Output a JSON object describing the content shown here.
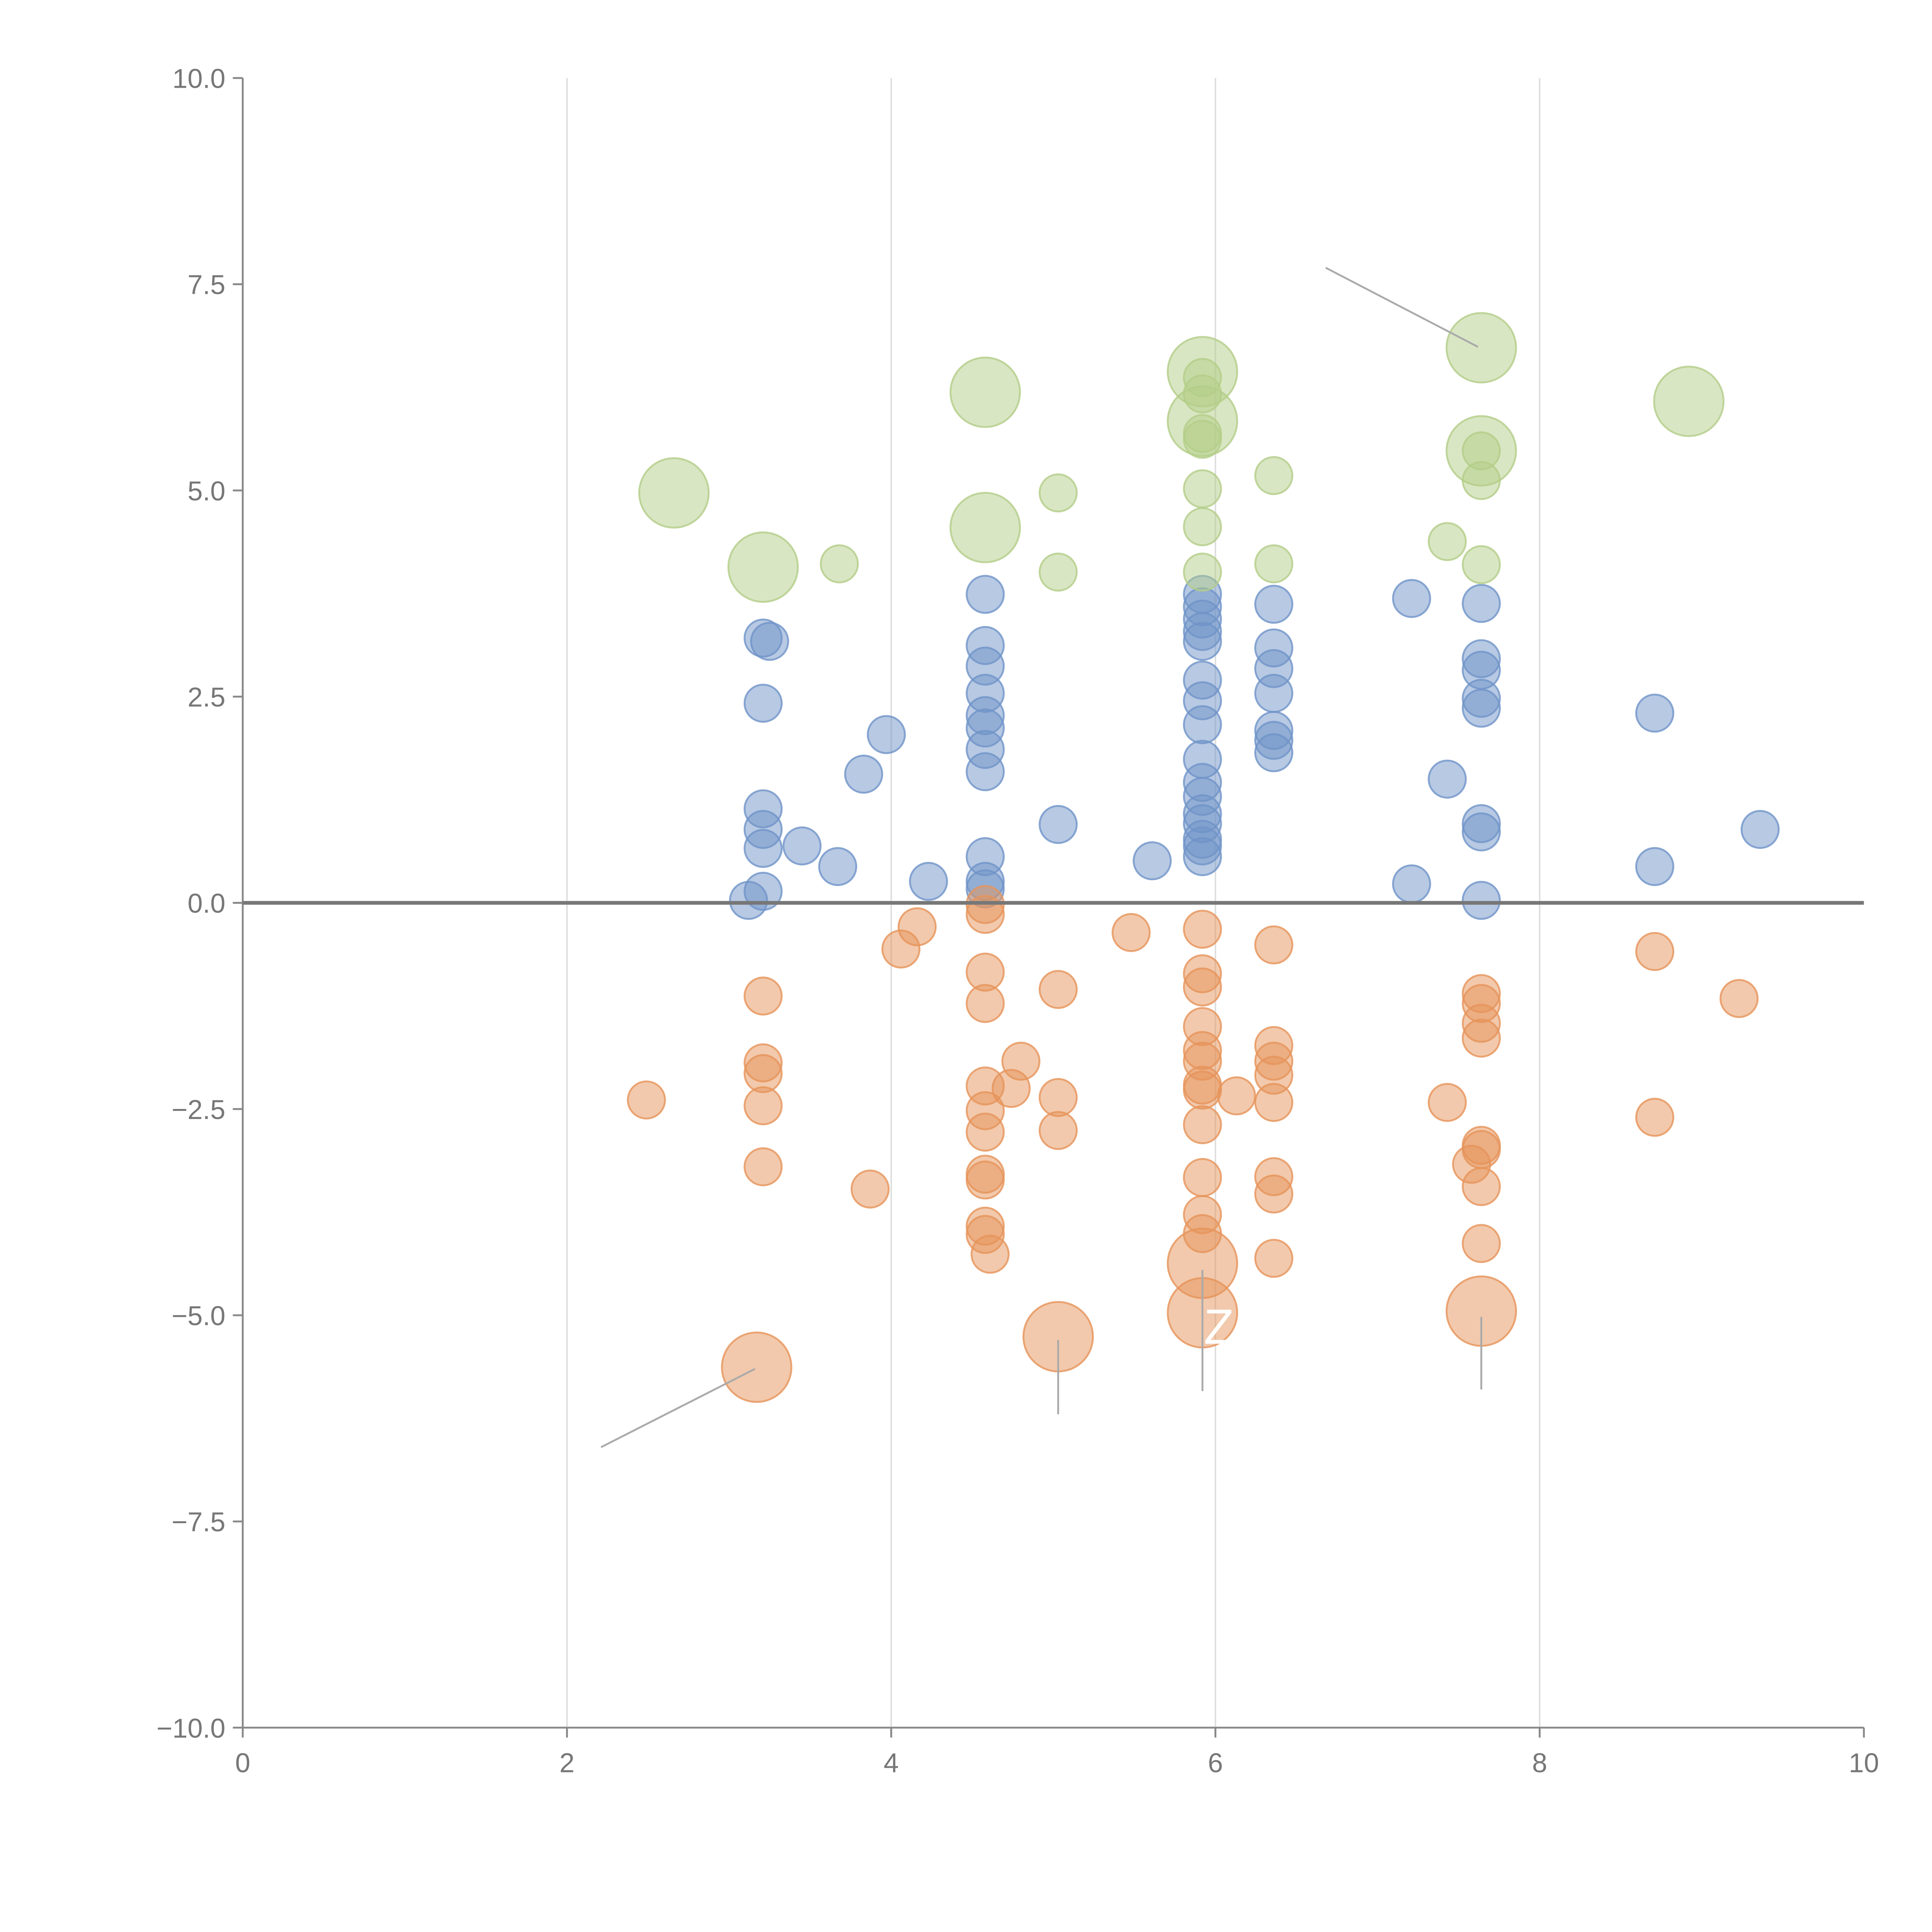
{
  "chart_data": {
    "type": "scatter",
    "title": "",
    "xlabel": "",
    "ylabel": "",
    "xlim": [
      0,
      10
    ],
    "ylim": [
      -10,
      10
    ],
    "x_ticks": [
      "0",
      "2",
      "4",
      "6",
      "8",
      "10"
    ],
    "y_ticks": [
      "10.0",
      "7.5",
      "5.0",
      "2.5",
      "0.0",
      "−2.5",
      "−5.0",
      "−7.5",
      "−10.0"
    ],
    "grid": "vertical",
    "reference_line_y": 0,
    "annotation_text": "Z",
    "series": [
      {
        "name": "blue",
        "color": "#6f93c8",
        "points": [
          [
            3.12,
            0.03,
            1
          ],
          [
            3.21,
            0.14,
            1
          ],
          [
            3.21,
            1.14,
            1
          ],
          [
            3.21,
            0.89,
            1
          ],
          [
            3.21,
            0.66,
            1
          ],
          [
            3.21,
            2.42,
            1
          ],
          [
            3.21,
            3.21,
            1
          ],
          [
            3.25,
            3.17,
            1
          ],
          [
            3.45,
            0.69,
            1
          ],
          [
            3.67,
            0.44,
            1
          ],
          [
            3.83,
            1.56,
            1
          ],
          [
            3.97,
            2.04,
            1
          ],
          [
            4.23,
            0.26,
            1
          ],
          [
            4.58,
            3.74,
            1
          ],
          [
            4.58,
            3.12,
            1
          ],
          [
            4.58,
            2.87,
            1
          ],
          [
            4.58,
            2.54,
            1
          ],
          [
            4.58,
            2.27,
            1
          ],
          [
            4.58,
            2.12,
            1
          ],
          [
            4.58,
            1.86,
            1
          ],
          [
            4.58,
            1.59,
            1
          ],
          [
            4.58,
            0.56,
            1
          ],
          [
            4.58,
            0.26,
            1
          ],
          [
            4.58,
            0.17,
            1
          ],
          [
            5.03,
            0.95,
            1
          ],
          [
            5.61,
            0.51,
            1
          ],
          [
            5.92,
            3.74,
            1
          ],
          [
            5.92,
            3.59,
            1
          ],
          [
            5.92,
            3.44,
            1
          ],
          [
            5.92,
            3.29,
            1
          ],
          [
            5.92,
            3.17,
            1
          ],
          [
            5.92,
            2.7,
            1
          ],
          [
            5.92,
            2.45,
            1
          ],
          [
            5.92,
            2.16,
            1
          ],
          [
            5.92,
            1.74,
            1
          ],
          [
            5.92,
            1.46,
            1
          ],
          [
            5.92,
            1.29,
            1
          ],
          [
            5.92,
            1.08,
            1
          ],
          [
            5.92,
            0.96,
            1
          ],
          [
            5.92,
            0.77,
            1
          ],
          [
            5.92,
            0.69,
            1
          ],
          [
            5.92,
            0.56,
            1
          ],
          [
            6.36,
            3.62,
            1
          ],
          [
            6.36,
            3.09,
            1
          ],
          [
            6.36,
            2.84,
            1
          ],
          [
            6.36,
            2.54,
            1
          ],
          [
            6.36,
            2.09,
            1
          ],
          [
            6.36,
            1.97,
            1
          ],
          [
            6.36,
            1.82,
            1
          ],
          [
            7.21,
            3.69,
            1
          ],
          [
            7.21,
            0.23,
            1
          ],
          [
            7.43,
            1.5,
            1
          ],
          [
            7.64,
            3.63,
            1
          ],
          [
            7.64,
            2.96,
            1
          ],
          [
            7.64,
            2.82,
            1
          ],
          [
            7.64,
            2.48,
            1
          ],
          [
            7.64,
            2.36,
            1
          ],
          [
            7.64,
            0.96,
            1
          ],
          [
            7.64,
            0.86,
            1
          ],
          [
            7.64,
            0.03,
            1
          ],
          [
            8.71,
            2.3,
            1
          ],
          [
            8.71,
            0.44,
            1
          ],
          [
            9.36,
            0.89,
            1
          ]
        ]
      },
      {
        "name": "orange",
        "color": "#e6945a",
        "points": [
          [
            2.49,
            -2.39,
            1
          ],
          [
            3.21,
            -1.13,
            1
          ],
          [
            3.21,
            -1.94,
            1
          ],
          [
            3.21,
            -2.07,
            1
          ],
          [
            3.21,
            -2.46,
            1
          ],
          [
            3.21,
            -3.2,
            1
          ],
          [
            3.87,
            -3.47,
            1
          ],
          [
            4.06,
            -0.56,
            1
          ],
          [
            4.16,
            -0.29,
            1
          ],
          [
            4.58,
            -0.02,
            1
          ],
          [
            4.58,
            -0.14,
            1
          ],
          [
            4.58,
            -0.84,
            1
          ],
          [
            4.58,
            -1.22,
            1
          ],
          [
            4.58,
            -2.22,
            1
          ],
          [
            4.58,
            -2.52,
            1
          ],
          [
            4.58,
            -2.78,
            1
          ],
          [
            4.58,
            -3.29,
            1
          ],
          [
            4.58,
            -3.36,
            1
          ],
          [
            4.58,
            -3.92,
            1
          ],
          [
            4.58,
            -4.02,
            1
          ],
          [
            4.61,
            -4.26,
            1
          ],
          [
            4.74,
            -2.25,
            1
          ],
          [
            4.8,
            -1.92,
            1
          ],
          [
            5.03,
            -1.05,
            1
          ],
          [
            5.03,
            -2.36,
            1
          ],
          [
            5.03,
            -2.76,
            1
          ],
          [
            5.48,
            -0.36,
            1
          ],
          [
            5.92,
            -0.32,
            1
          ],
          [
            5.92,
            -0.86,
            1
          ],
          [
            5.92,
            -1.02,
            1
          ],
          [
            5.92,
            -1.5,
            1
          ],
          [
            5.92,
            -1.79,
            1
          ],
          [
            5.92,
            -1.92,
            1
          ],
          [
            5.92,
            -2.21,
            1
          ],
          [
            5.92,
            -2.27,
            1
          ],
          [
            5.92,
            -2.69,
            1
          ],
          [
            5.92,
            -3.33,
            1
          ],
          [
            5.92,
            -3.78,
            1
          ],
          [
            5.92,
            -4.01,
            1
          ],
          [
            6.13,
            -2.34,
            1
          ],
          [
            6.36,
            -0.51,
            1
          ],
          [
            6.36,
            -1.73,
            1
          ],
          [
            6.36,
            -1.92,
            1
          ],
          [
            6.36,
            -2.09,
            1
          ],
          [
            6.36,
            -2.42,
            1
          ],
          [
            6.36,
            -3.32,
            1
          ],
          [
            6.36,
            -3.53,
            1
          ],
          [
            6.36,
            -4.31,
            1
          ],
          [
            7.43,
            -2.42,
            1
          ],
          [
            7.58,
            -3.17,
            1
          ],
          [
            7.64,
            -1.1,
            1
          ],
          [
            7.64,
            -1.22,
            1
          ],
          [
            7.64,
            -1.46,
            1
          ],
          [
            7.64,
            -1.64,
            1
          ],
          [
            7.64,
            -2.94,
            1
          ],
          [
            7.64,
            -2.99,
            1
          ],
          [
            7.64,
            -3.44,
            1
          ],
          [
            7.64,
            -4.13,
            1
          ],
          [
            8.71,
            -0.59,
            1
          ],
          [
            8.71,
            -2.6,
            1
          ],
          [
            9.23,
            -1.16,
            1
          ],
          [
            3.17,
            -5.63,
            3.5
          ],
          [
            5.03,
            -5.26,
            3.5
          ],
          [
            5.92,
            -4.37,
            3.5
          ],
          [
            5.92,
            -4.97,
            3.5
          ],
          [
            7.64,
            -4.95,
            3.5
          ]
        ]
      },
      {
        "name": "green",
        "color": "#b3cd88",
        "points": [
          [
            3.68,
            4.11,
            1
          ],
          [
            5.03,
            4.97,
            1
          ],
          [
            5.03,
            4.01,
            1
          ],
          [
            5.92,
            5.02,
            1
          ],
          [
            5.92,
            4.56,
            1
          ],
          [
            5.92,
            4.01,
            1
          ],
          [
            5.92,
            5.62,
            1
          ],
          [
            5.92,
            5.69,
            1
          ],
          [
            6.36,
            5.18,
            1
          ],
          [
            6.36,
            4.11,
            1
          ],
          [
            7.43,
            4.38,
            1
          ],
          [
            7.64,
            5.12,
            1
          ],
          [
            7.64,
            4.1,
            1
          ],
          [
            7.64,
            5.48,
            1
          ],
          [
            5.92,
            6.37,
            1
          ],
          [
            5.92,
            6.17,
            1
          ],
          [
            2.66,
            4.97,
            3.5
          ],
          [
            3.21,
            4.07,
            3.5
          ],
          [
            4.58,
            6.19,
            3.5
          ],
          [
            4.58,
            4.55,
            3.5
          ],
          [
            5.92,
            6.44,
            3.5
          ],
          [
            5.92,
            5.84,
            3.5
          ],
          [
            7.64,
            6.73,
            3.5
          ],
          [
            7.64,
            5.48,
            3.5
          ],
          [
            8.92,
            6.08,
            3.5
          ]
        ]
      }
    ],
    "annotation_lines": [
      [
        [
          6.68,
          7.7
        ],
        [
          7.62,
          6.74
        ]
      ],
      [
        [
          2.21,
          -6.6
        ],
        [
          3.16,
          -5.65
        ]
      ],
      [
        [
          5.03,
          -5.3
        ],
        [
          5.03,
          -6.2
        ]
      ],
      [
        [
          5.92,
          -4.45
        ],
        [
          5.92,
          -5.92
        ]
      ],
      [
        [
          7.64,
          -5.02
        ],
        [
          7.64,
          -5.9
        ]
      ]
    ]
  }
}
